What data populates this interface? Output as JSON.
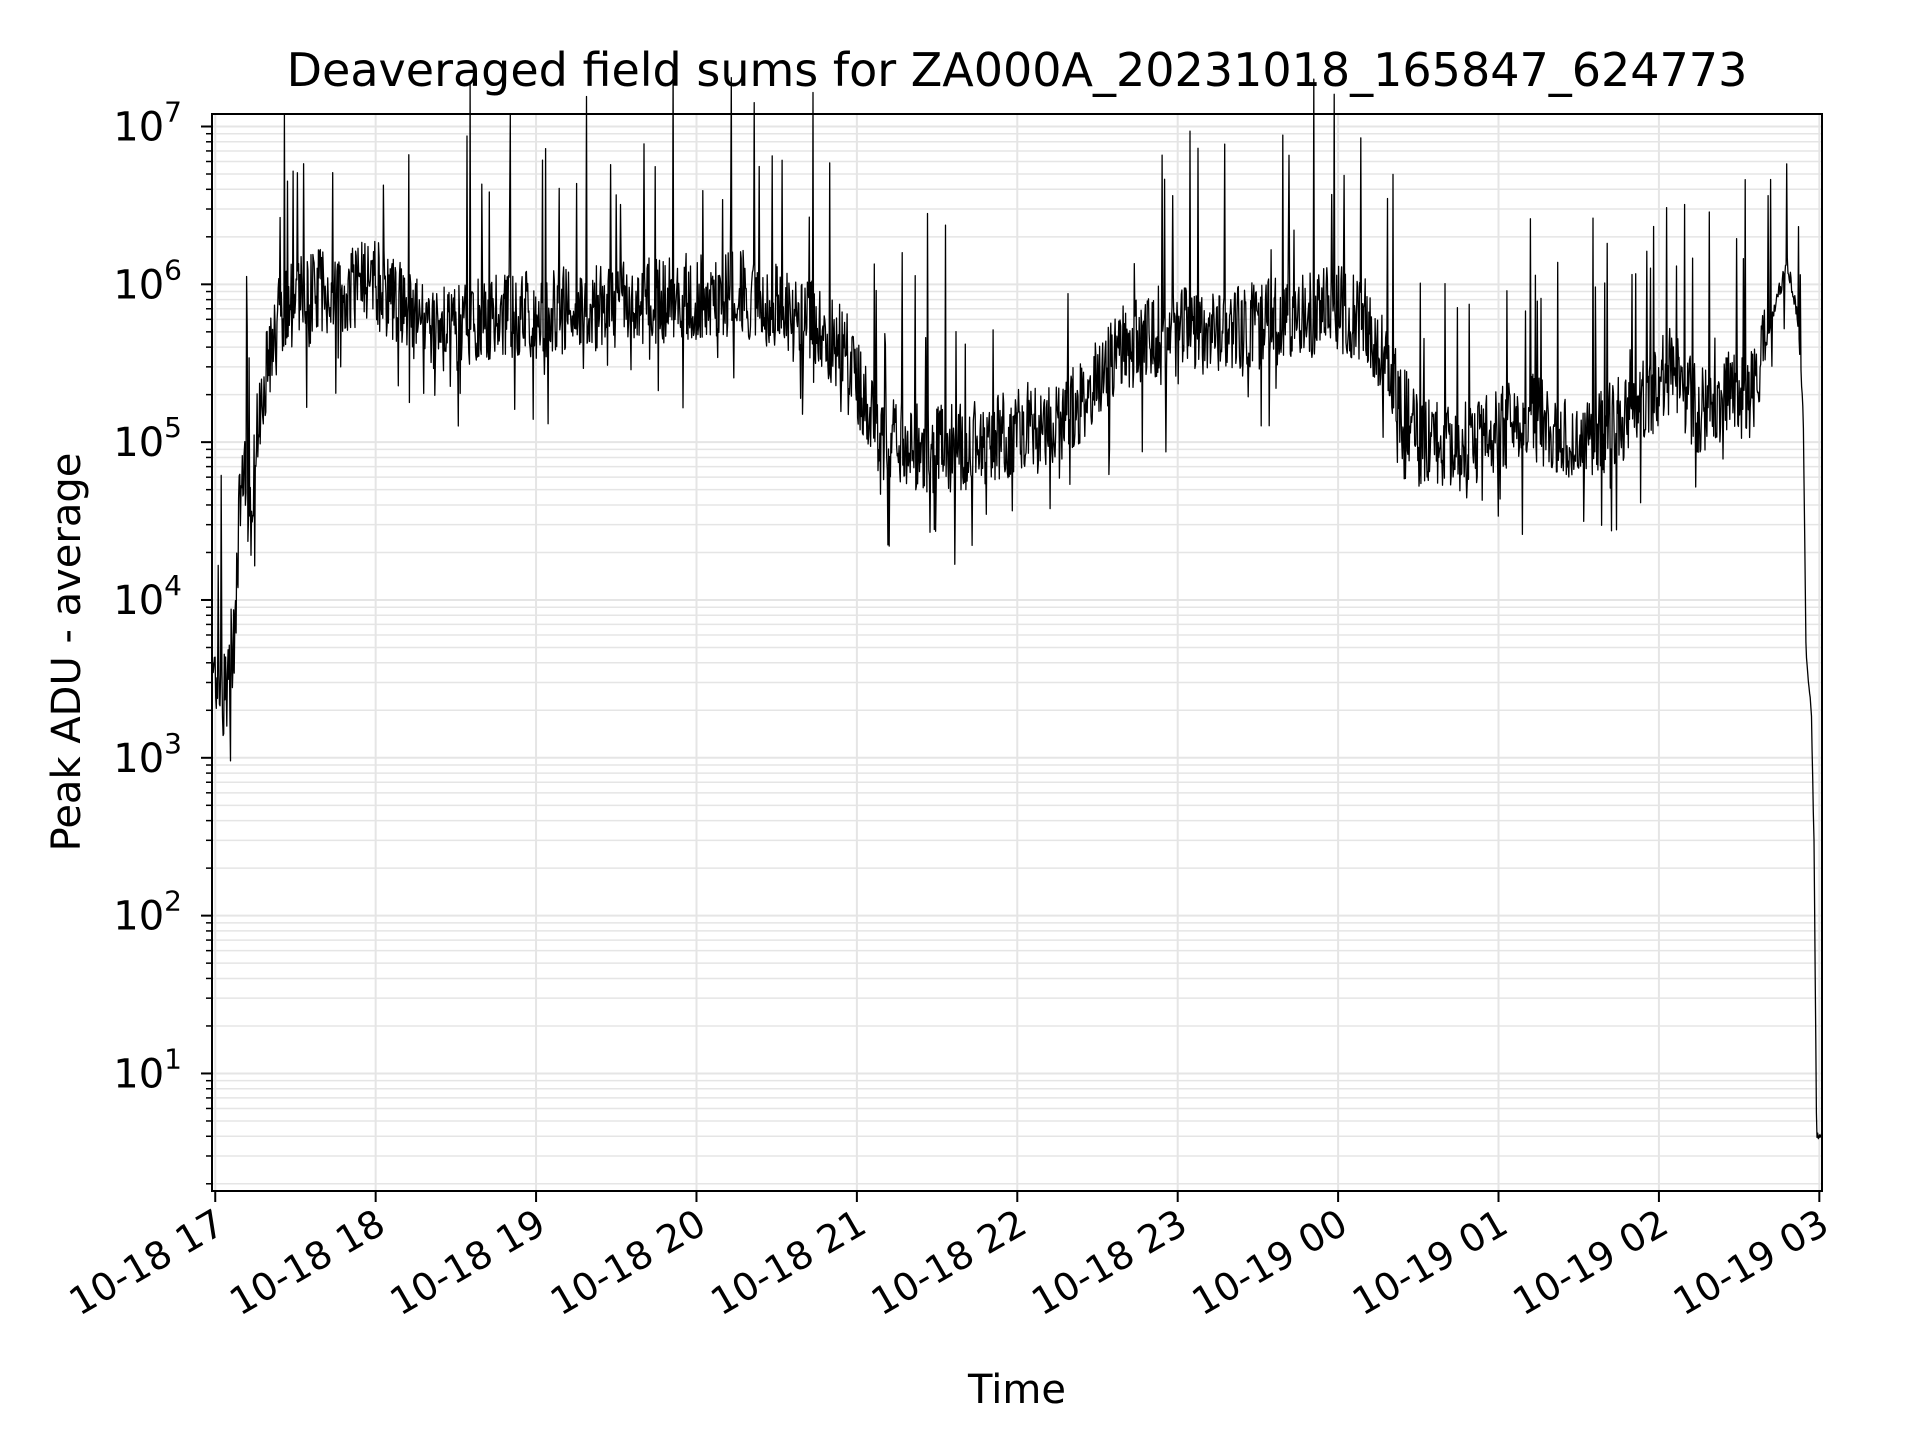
{
  "chart_data": {
    "type": "line",
    "title": "Deaveraged field sums for ZA000A_20231018_165847_624773",
    "xlabel": "Time",
    "ylabel": "Peak ADU - average",
    "yscale": "log",
    "ylim": [
      1.8,
      12000000
    ],
    "xlim": [
      "10-18 16:58:47",
      "10-19 03:01:00"
    ],
    "grid": true,
    "grid_minor": true,
    "x_ticks": [
      "10-18 17",
      "10-18 18",
      "10-18 19",
      "10-18 20",
      "10-18 21",
      "10-18 22",
      "10-18 23",
      "10-19 00",
      "10-19 01",
      "10-19 02",
      "10-19 03"
    ],
    "y_ticks": [
      {
        "base": "10",
        "exp": "1",
        "value": 10
      },
      {
        "base": "10",
        "exp": "2",
        "value": 100
      },
      {
        "base": "10",
        "exp": "3",
        "value": 1000
      },
      {
        "base": "10",
        "exp": "4",
        "value": 10000
      },
      {
        "base": "10",
        "exp": "5",
        "value": 100000
      },
      {
        "base": "10",
        "exp": "6",
        "value": 1000000
      },
      {
        "base": "10",
        "exp": "7",
        "value": 10000000
      }
    ],
    "line_color": "#000000",
    "grid_color": "#e5e5e5",
    "series": [
      {
        "x": [
          "10-18 16:59",
          "10-18 17:04",
          "10-18 17:07",
          "10-18 17:10",
          "10-18 17:13",
          "10-18 17:17",
          "10-18 17:25",
          "10-18 17:40",
          "10-18 18:00",
          "10-18 18:20",
          "10-18 18:45",
          "10-18 19:15",
          "10-18 19:45",
          "10-18 20:15",
          "10-18 20:40",
          "10-18 20:55",
          "10-18 21:10",
          "10-18 21:30",
          "10-18 21:50",
          "10-18 22:00",
          "10-18 22:20",
          "10-18 22:40",
          "10-18 23:00",
          "10-18 23:20",
          "10-18 23:40",
          "10-19 00:00",
          "10-19 00:10",
          "10-19 00:30",
          "10-19 00:50",
          "10-19 01:10",
          "10-19 01:30",
          "10-19 01:50",
          "10-19 02:05",
          "10-19 02:15",
          "10-19 02:25",
          "10-19 02:35",
          "10-19 02:48",
          "10-19 02:52",
          "10-19 02:54",
          "10-19 02:55",
          "10-19 02:56",
          "10-19 02:57",
          "10-19 02:58",
          "10-19 02:59",
          "10-19 03:00",
          "10-19 03:01"
        ],
        "y": [
          3000,
          2500,
          5000,
          90000,
          30000,
          200000,
          700000,
          900000,
          1000000,
          500000,
          600000,
          700000,
          800000,
          900000,
          600000,
          400000,
          100000,
          90000,
          100000,
          120000,
          150000,
          400000,
          500000,
          500000,
          600000,
          700000,
          600000,
          100000,
          100000,
          150000,
          100000,
          150000,
          300000,
          150000,
          200000,
          200000,
          1400000,
          600000,
          150000,
          5000,
          3000,
          2000,
          300,
          4,
          4,
          4
        ]
      }
    ]
  }
}
